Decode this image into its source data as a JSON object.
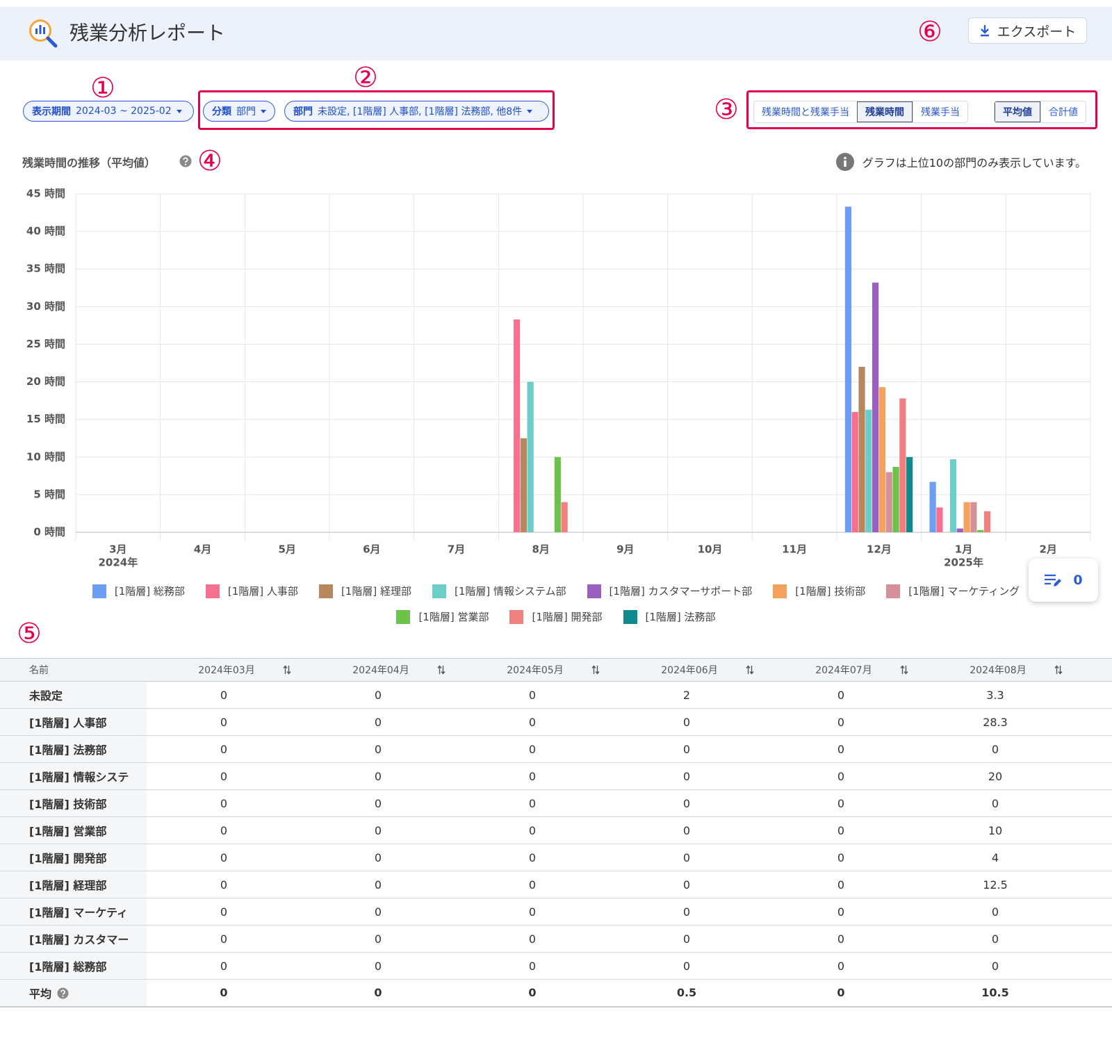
{
  "header": {
    "title": "残業分析レポート",
    "export_button": "エクスポート"
  },
  "filters": {
    "period": {
      "label": "表示期間",
      "value": "2024-03 ~ 2025-02"
    },
    "classification": {
      "label": "分類",
      "value": "部門"
    },
    "department": {
      "label": "部門",
      "value": "未設定, [1階層] 人事部, [1階層] 法務部, 他8件"
    }
  },
  "view_toggles": {
    "metric": [
      {
        "label": "残業時間と残業手当",
        "active": false
      },
      {
        "label": "残業時間",
        "active": true
      },
      {
        "label": "残業手当",
        "active": false
      }
    ],
    "aggregate": [
      {
        "label": "平均値",
        "active": true
      },
      {
        "label": "合計値",
        "active": false
      }
    ]
  },
  "annotations": [
    "①",
    "②",
    "③",
    "④",
    "⑤",
    "⑥"
  ],
  "chart_data": {
    "type": "bar",
    "title": "残業時間の推移（平均値）",
    "note": "グラフは上位10の部門のみ表示しています。",
    "categories": [
      "3月",
      "4月",
      "5月",
      "6月",
      "7月",
      "8月",
      "9月",
      "10月",
      "11月",
      "12月",
      "1月",
      "2月"
    ],
    "year_labels": [
      "2024年",
      null,
      null,
      null,
      null,
      null,
      null,
      null,
      null,
      null,
      "2025年",
      null
    ],
    "ylim": [
      0,
      45
    ],
    "yticks": [
      {
        "value": 0,
        "label": "0 時間"
      },
      {
        "value": 5,
        "label": "5 時間"
      },
      {
        "value": 10,
        "label": "10 時間"
      },
      {
        "value": 15,
        "label": "15 時間"
      },
      {
        "value": 20,
        "label": "20 時間"
      },
      {
        "value": 25,
        "label": "25 時間"
      },
      {
        "value": 30,
        "label": "30 時間"
      },
      {
        "value": 35,
        "label": "35 時間"
      },
      {
        "value": 40,
        "label": "40 時間"
      },
      {
        "value": 45,
        "label": "45 時間"
      }
    ],
    "grid": true,
    "legend_position": "bottom",
    "series": [
      {
        "name": "[1階層] 総務部",
        "color": "#6d9ef5",
        "values": [
          0,
          0,
          0,
          0,
          0,
          0,
          0,
          0,
          0,
          43.3,
          6.7,
          0
        ]
      },
      {
        "name": "[1階層] 人事部",
        "color": "#f7708e",
        "values": [
          0,
          0,
          0,
          0,
          0,
          28.3,
          0,
          0,
          0,
          16,
          3.3,
          0
        ]
      },
      {
        "name": "[1階層] 経理部",
        "color": "#b8875e",
        "values": [
          0,
          0,
          0,
          0,
          0,
          12.5,
          0,
          0,
          0,
          22,
          0,
          0
        ]
      },
      {
        "name": "[1階層] 情報システム部",
        "color": "#6ccdc9",
        "values": [
          0,
          0,
          0,
          0,
          0,
          20,
          0,
          0,
          0,
          16.3,
          9.7,
          0
        ]
      },
      {
        "name": "[1階層] カスタマーサポート部",
        "color": "#9b5fc0",
        "values": [
          0,
          0,
          0,
          0,
          0,
          0,
          0,
          0,
          0,
          33.2,
          0.5,
          0
        ]
      },
      {
        "name": "[1階層] 技術部",
        "color": "#f5a25d",
        "values": [
          0,
          0,
          0,
          0,
          0,
          0,
          0,
          0,
          0,
          19.3,
          4,
          0
        ]
      },
      {
        "name": "[1階層] マーケティング",
        "color": "#d4919a",
        "values": [
          0,
          0,
          0,
          0,
          0,
          0,
          0,
          0,
          0,
          8,
          4,
          0
        ]
      },
      {
        "name": "[1階層] 営業部",
        "color": "#6cc24a",
        "values": [
          0,
          0,
          0,
          0,
          0,
          10,
          0,
          0,
          0,
          8.7,
          0.3,
          0
        ]
      },
      {
        "name": "[1階層] 開発部",
        "color": "#f08080",
        "values": [
          0,
          0,
          0,
          0,
          0,
          4,
          0,
          0,
          0,
          17.8,
          2.8,
          0
        ]
      },
      {
        "name": "[1階層] 法務部",
        "color": "#0f8b8d",
        "values": [
          0,
          0,
          0,
          0,
          0,
          0,
          0,
          0,
          0,
          10,
          0,
          0
        ]
      }
    ]
  },
  "comment_button": {
    "count": 0
  },
  "table": {
    "columns": [
      "名前",
      "2024年03月",
      "2024年04月",
      "2024年05月",
      "2024年06月",
      "2024年07月",
      "2024年08月"
    ],
    "rows": [
      [
        "未設定",
        0,
        0,
        0,
        2,
        0,
        3.3
      ],
      [
        "[1階層] 人事部",
        0,
        0,
        0,
        0,
        0,
        28.3
      ],
      [
        "[1階層] 法務部",
        0,
        0,
        0,
        0,
        0,
        0
      ],
      [
        "[1階層] 情報システ",
        0,
        0,
        0,
        0,
        0,
        20
      ],
      [
        "[1階層] 技術部",
        0,
        0,
        0,
        0,
        0,
        0
      ],
      [
        "[1階層] 営業部",
        0,
        0,
        0,
        0,
        0,
        10
      ],
      [
        "[1階層] 開発部",
        0,
        0,
        0,
        0,
        0,
        4
      ],
      [
        "[1階層] 経理部",
        0,
        0,
        0,
        0,
        0,
        12.5
      ],
      [
        "[1階層] マーケティ",
        0,
        0,
        0,
        0,
        0,
        0
      ],
      [
        "[1階層] カスタマー",
        0,
        0,
        0,
        0,
        0,
        0
      ],
      [
        "[1階層] 総務部",
        0,
        0,
        0,
        0,
        0,
        0
      ]
    ],
    "footer": [
      "平均",
      0,
      0,
      0,
      0.5,
      0,
      10.5
    ]
  }
}
